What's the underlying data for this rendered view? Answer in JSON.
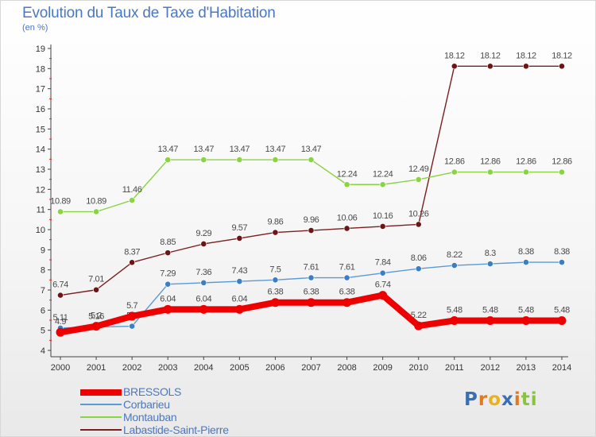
{
  "chart_data": {
    "type": "line",
    "title": "Evolution du Taux de Taxe d'Habitation",
    "subtitle": "(en %)",
    "xlabel": "",
    "ylabel": "",
    "x": [
      "2000",
      "2001",
      "2002",
      "2003",
      "2004",
      "2005",
      "2006",
      "2007",
      "2008",
      "2009",
      "2010",
      "2011",
      "2012",
      "2013",
      "2014"
    ],
    "ylim": [
      4,
      19
    ],
    "yticks": [
      "4",
      "5",
      "6",
      "7",
      "8",
      "9",
      "10",
      "11",
      "12",
      "13",
      "14",
      "15",
      "16",
      "17",
      "18",
      "19"
    ],
    "grid": false,
    "legend_position": "bottom-left",
    "series": [
      {
        "name": "Labastide-Saint-Pierre",
        "color": "#7a1f1f",
        "marker_color": "#6b1515",
        "values": [
          6.74,
          7.01,
          8.37,
          8.85,
          9.29,
          9.57,
          9.86,
          9.96,
          10.06,
          10.16,
          10.26,
          18.12,
          18.12,
          18.12,
          18.12
        ],
        "labels": [
          "6.74",
          "7.01",
          "8.37",
          "8.85",
          "9.29",
          "9.57",
          "9.86",
          "9.96",
          "10.06",
          "10.16",
          "10.26",
          "18.12",
          "18.12",
          "18.12",
          "18.12"
        ]
      },
      {
        "name": "Montauban",
        "color": "#8ad344",
        "marker_color": "#8ad344",
        "values": [
          10.89,
          10.89,
          11.46,
          13.47,
          13.47,
          13.47,
          13.47,
          13.47,
          12.24,
          12.24,
          12.49,
          12.86,
          12.86,
          12.86,
          12.86
        ],
        "labels": [
          "10.89",
          "10.89",
          "11.46",
          "13.47",
          "13.47",
          "13.47",
          "13.47",
          "13.47",
          "12.24",
          "12.24",
          "12.49",
          "12.86",
          "12.86",
          "12.86",
          "12.86"
        ]
      },
      {
        "name": "Corbarieu",
        "color": "#5b9bd5",
        "marker_color": "#3a7fc6",
        "values": [
          5.11,
          5.16,
          5.2,
          7.29,
          7.36,
          7.43,
          7.5,
          7.61,
          7.61,
          7.84,
          8.06,
          8.22,
          8.3,
          8.38,
          8.38
        ],
        "labels": [
          "5.11",
          "5.16",
          "5.2",
          "7.29",
          "7.36",
          "7.43",
          "7.5",
          "7.61",
          "7.61",
          "7.84",
          "8.06",
          "8.22",
          "8.3",
          "8.38",
          "8.38"
        ]
      },
      {
        "name": "BRESSOLS",
        "color": "#ee0000",
        "marker_color": "#ee0000",
        "values": [
          4.9,
          5.2,
          5.7,
          6.04,
          6.04,
          6.04,
          6.38,
          6.38,
          6.38,
          6.74,
          5.22,
          5.48,
          5.48,
          5.48,
          5.48
        ],
        "labels": [
          "4.9",
          "5.2",
          "5.7",
          "6.04",
          "6.04",
          "6.04",
          "6.38",
          "6.38",
          "6.38",
          "6.74",
          "5.22",
          "5.48",
          "5.48",
          "5.48",
          "5.48"
        ]
      }
    ],
    "legend": [
      {
        "name": "BRESSOLS",
        "color": "#ee0000",
        "bold": true
      },
      {
        "name": "Corbarieu",
        "color": "#5b9bd5",
        "bold": false
      },
      {
        "name": "Montauban",
        "color": "#8ad344",
        "bold": false
      },
      {
        "name": "Labastide-Saint-Pierre",
        "color": "#7a1f1f",
        "bold": false
      }
    ]
  },
  "branding": {
    "logo_text": "Proxiti",
    "logo_letters": [
      {
        "ch": "P",
        "color": "#3a6fb5"
      },
      {
        "ch": "r",
        "color": "#e07a1c"
      },
      {
        "ch": "o",
        "color": "#e8b21c"
      },
      {
        "ch": "x",
        "color": "#3a6fb5"
      },
      {
        "ch": "i",
        "color": "#e07a1c"
      },
      {
        "ch": "t",
        "color": "#8ac43f"
      },
      {
        "ch": "i",
        "color": "#8ac43f"
      }
    ]
  }
}
